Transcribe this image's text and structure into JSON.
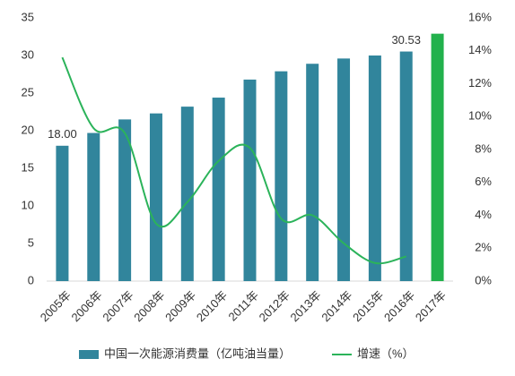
{
  "chart_data": {
    "type": "bar-line",
    "categories": [
      "2005年",
      "2006年",
      "2007年",
      "2008年",
      "2009年",
      "2010年",
      "2011年",
      "2012年",
      "2013年",
      "2014年",
      "2015年",
      "2016年",
      "2017年"
    ],
    "series": [
      {
        "name": "中国一次能源消费量（亿吨油当量）",
        "type": "bar",
        "color": "#31859c",
        "colors": [
          "#31859c",
          "#31859c",
          "#31859c",
          "#31859c",
          "#31859c",
          "#31859c",
          "#31859c",
          "#31859c",
          "#31859c",
          "#31859c",
          "#31859c",
          "#31859c",
          "#22b14c"
        ],
        "values": [
          18,
          19.7,
          21.5,
          22.3,
          23.2,
          24.4,
          26.8,
          27.9,
          28.9,
          29.6,
          30.0,
          30.53,
          32.9
        ],
        "value_labels": [
          "18.00",
          null,
          null,
          null,
          null,
          null,
          null,
          null,
          null,
          null,
          null,
          "30.53",
          null
        ]
      },
      {
        "name": "增速（%）",
        "type": "line",
        "axis": "y2",
        "color": "#2bb35a",
        "values": [
          13.6,
          9.3,
          9.0,
          3.5,
          4.8,
          7.3,
          8.1,
          3.8,
          4.0,
          2.3,
          1.1,
          1.5,
          null
        ]
      }
    ],
    "ylim": [
      0,
      35
    ],
    "yticks": [
      0,
      5,
      10,
      15,
      20,
      25,
      30,
      35
    ],
    "y2lim": [
      0,
      16
    ],
    "y2ticks": [
      {
        "value": 0,
        "label": "0%"
      },
      {
        "value": 2,
        "label": "2%"
      },
      {
        "value": 4,
        "label": "4%"
      },
      {
        "value": 6,
        "label": "6%"
      },
      {
        "value": 8,
        "label": "8%"
      },
      {
        "value": 10,
        "label": "10%"
      },
      {
        "value": 12,
        "label": "12%"
      },
      {
        "value": 14,
        "label": "14%"
      },
      {
        "value": 16,
        "label": "16%"
      }
    ],
    "legend": "bottom"
  }
}
